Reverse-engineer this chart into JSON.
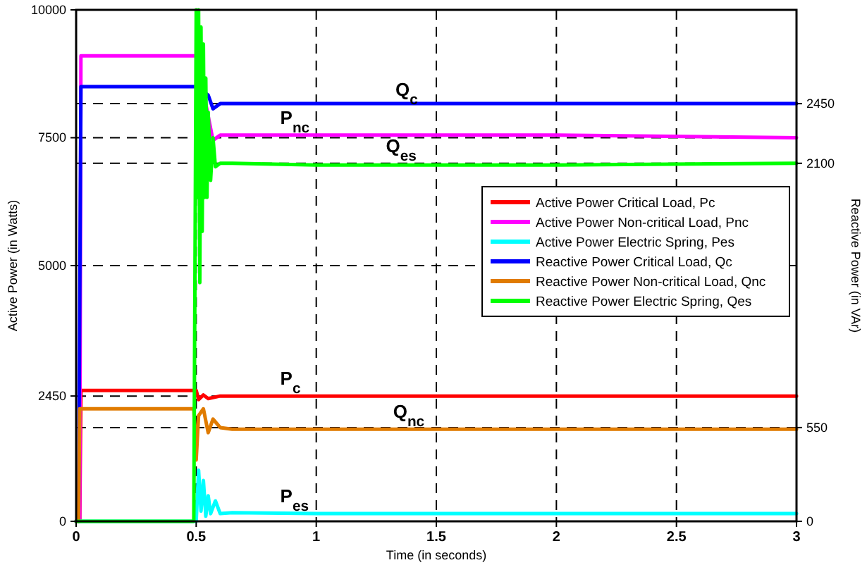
{
  "chart_data": {
    "type": "line",
    "xlabel": "Time (in seconds)",
    "ylabel": "Active Power (in Watts)",
    "y2label": "Reactive Power (in VAr)",
    "xlim": [
      0,
      3
    ],
    "xticks": [
      0,
      0.5,
      1,
      1.5,
      2,
      2.5,
      3
    ],
    "ylim": [
      0,
      10000
    ],
    "yticks": [
      0,
      2450,
      5000,
      7500,
      10000
    ],
    "y2lim": [
      0,
      3000
    ],
    "y2ticks": [
      0,
      550,
      2100,
      2450
    ],
    "grid": true,
    "legend": "right",
    "line_style": "solid",
    "marker": "none",
    "series": [
      {
        "name": "Active Power Critical Load, Pc",
        "color": "#ff0000",
        "x": [
          0,
          0.015,
          0.02,
          0.49,
          0.5,
          0.51,
          0.53,
          0.55,
          0.6,
          1,
          2,
          3
        ],
        "values": [
          0,
          0,
          2560,
          2560,
          2560,
          2380,
          2470,
          2400,
          2450,
          2450,
          2450,
          2450
        ]
      },
      {
        "name": "Active Power Non-critical Load, Pnc",
        "color": "#ff00ff",
        "x": [
          0,
          0.015,
          0.02,
          0.5,
          0.57,
          0.6,
          1,
          2,
          3
        ],
        "values": [
          0,
          0,
          9100,
          9100,
          7450,
          7550,
          7550,
          7550,
          7500
        ]
      },
      {
        "name": "Active Power Electric Spring, Pes",
        "color": "#00ffff",
        "x": [
          0,
          0.5,
          0.51,
          0.52,
          0.53,
          0.54,
          0.55,
          0.56,
          0.58,
          0.6,
          0.65,
          1,
          2,
          3
        ],
        "values": [
          0,
          0,
          1000,
          200,
          800,
          100,
          500,
          150,
          400,
          150,
          170,
          150,
          150,
          150
        ]
      },
      {
        "name": "Reactive Power Critical Load, Qc",
        "color": "#0000ff",
        "axis": "y2",
        "x": [
          0,
          0.01,
          0.02,
          0.5,
          0.55,
          0.57,
          0.6,
          1,
          2,
          3
        ],
        "values": [
          0,
          0,
          2550,
          2550,
          2500,
          2420,
          2450,
          2450,
          2450,
          2450
        ]
      },
      {
        "name": "Reactive Power Non-critical Load, Qnc",
        "color": "#e07b00",
        "axis": "y2",
        "x": [
          0,
          0.01,
          0.015,
          0.49,
          0.5,
          0.51,
          0.53,
          0.55,
          0.57,
          0.6,
          0.65,
          1,
          2,
          3
        ],
        "values": [
          0,
          0,
          660,
          660,
          360,
          620,
          660,
          520,
          600,
          550,
          540,
          540,
          540,
          540
        ]
      },
      {
        "name": "Reactive Power Electric Spring, Qes",
        "color": "#00ff00",
        "axis": "y2",
        "x": [
          0,
          0.49,
          0.5,
          0.505,
          0.51,
          0.515,
          0.52,
          0.525,
          0.53,
          0.535,
          0.54,
          0.545,
          0.55,
          0.56,
          0.57,
          0.58,
          0.6,
          0.65,
          1,
          2,
          3
        ],
        "values": [
          0,
          0,
          3000,
          1900,
          3000,
          1400,
          2900,
          1700,
          2800,
          1900,
          2600,
          1900,
          2400,
          2000,
          2250,
          2080,
          2100,
          2100,
          2090,
          2090,
          2100
        ]
      }
    ],
    "annotations": [
      {
        "text": "Q$_{c}$",
        "x": 1.33,
        "y": 8100
      },
      {
        "text": "P$_{nc}$",
        "x": 0.85,
        "y": 7550
      },
      {
        "text": "Q$_{es}$",
        "x": 1.29,
        "y": 7000
      },
      {
        "text": "P$_{c}$",
        "x": 0.85,
        "y": 2450
      },
      {
        "text": "Q$_{nc}$",
        "x": 1.32,
        "y": 1800
      },
      {
        "text": "P$_{es}$",
        "x": 0.85,
        "y": 150
      }
    ]
  }
}
